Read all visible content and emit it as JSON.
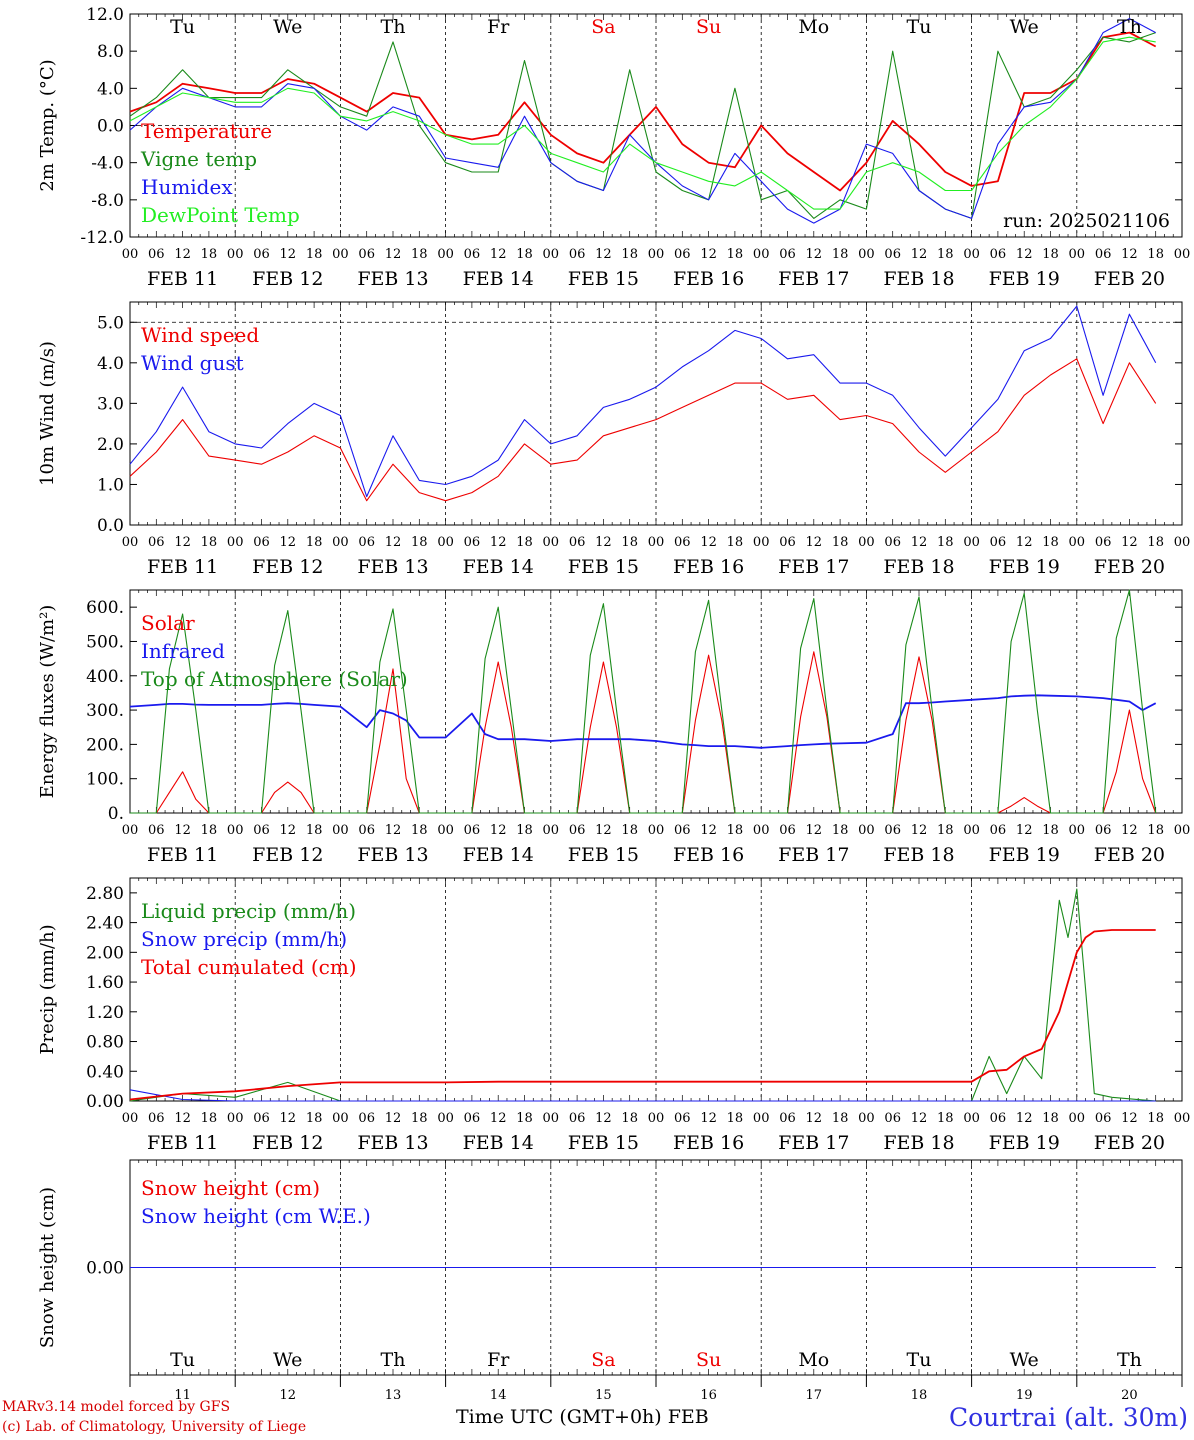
{
  "station": "Courtrai (alt. 30m)",
  "credits": [
    "MARv3.14 model forced by GFS",
    "(c) Lab. of Climatology, University of Liege"
  ],
  "x_title": "Time UTC (GMT+0h) FEB",
  "run_label": "run: 2025021106",
  "days": [
    "11",
    "12",
    "13",
    "14",
    "15",
    "16",
    "17",
    "18",
    "19",
    "20"
  ],
  "day_labels": [
    "FEB 11",
    "FEB 12",
    "FEB 13",
    "FEB 14",
    "FEB 15",
    "FEB 16",
    "FEB 17",
    "FEB 18",
    "FEB 19",
    "FEB 20"
  ],
  "weekdays": [
    "Tu",
    "We",
    "Th",
    "Fr",
    "Sa",
    "Su",
    "Mo",
    "Tu",
    "We",
    "Th"
  ],
  "weekday_colors": [
    "#000000",
    "#000000",
    "#000000",
    "#000000",
    "#ee0000",
    "#ee0000",
    "#000000",
    "#000000",
    "#000000",
    "#000000"
  ],
  "hour_ticks": [
    "00",
    "06",
    "12",
    "18"
  ],
  "colors": {
    "red": "#ee0000",
    "green": "#1a8a1a",
    "blue": "#1a1aee",
    "lightgreen": "#22ee22"
  },
  "chart_data": [
    {
      "type": "line",
      "ylabel": "2m Temp. (°C)",
      "ylim": [
        -12,
        12
      ],
      "yticks": [
        "12.0",
        "8.0",
        "4.0",
        "0.0",
        "-4.0",
        "-8.0",
        "-12.0"
      ],
      "hours": [
        0,
        6,
        12,
        18,
        24,
        30,
        36,
        42,
        48,
        54,
        60,
        66,
        72,
        78,
        84,
        90,
        96,
        102,
        108,
        114,
        120,
        126,
        132,
        138,
        144,
        150,
        156,
        162,
        168,
        174,
        180,
        186,
        192,
        198,
        204,
        210,
        216,
        222,
        228,
        234
      ],
      "series": [
        {
          "name": "Temperature",
          "color": "#ee0000",
          "values": [
            1.5,
            2.5,
            4.5,
            4,
            3.5,
            3.5,
            5,
            4.5,
            3,
            1.5,
            3.5,
            3,
            -1,
            -1.5,
            -1,
            2.5,
            -1,
            -3,
            -4,
            -1,
            2,
            -2,
            -4,
            -4.5,
            0,
            -3,
            -5,
            -7,
            -4,
            0.5,
            -2,
            -5,
            -6.5,
            -6,
            3.5,
            3.5,
            5,
            9.5,
            10,
            8.5
          ]
        },
        {
          "name": "Vigne temp",
          "color": "#1a8a1a",
          "values": [
            1,
            3,
            6,
            3,
            3,
            3,
            6,
            4,
            2,
            1,
            9,
            0,
            -4,
            -5,
            -5,
            7,
            -4,
            -6,
            -7,
            6,
            -5,
            -7,
            -8,
            4,
            -8,
            -7,
            -10,
            -8,
            -9,
            8,
            -7,
            -9,
            -10,
            8,
            2,
            3,
            6,
            9.5,
            9,
            10
          ]
        },
        {
          "name": "Humidex",
          "color": "#1a1aee",
          "values": [
            -0.5,
            2,
            4,
            3,
            2,
            2,
            4.5,
            4,
            1,
            -0.5,
            2,
            1,
            -3.5,
            -4,
            -4.5,
            1,
            -4,
            -6,
            -7,
            -1,
            -4,
            -6.5,
            -8,
            -3,
            -6,
            -9,
            -10.5,
            -9,
            -2,
            -3,
            -7,
            -9,
            -10,
            -2,
            2,
            2.5,
            5,
            10,
            11.5,
            10
          ]
        },
        {
          "name": "DewPoint Temp",
          "color": "#22ee22",
          "values": [
            0.5,
            2,
            3.5,
            3,
            2.5,
            2.5,
            4,
            3.5,
            1,
            0.5,
            1.5,
            0.5,
            -1,
            -2,
            -2,
            0,
            -3,
            -4,
            -5,
            -2,
            -4,
            -5,
            -6,
            -6.5,
            -5,
            -7,
            -9,
            -9,
            -5,
            -4,
            -5,
            -7,
            -7,
            -3,
            0,
            2,
            5,
            9,
            9.5,
            9
          ]
        }
      ]
    },
    {
      "type": "line",
      "ylabel": "10m Wind (m/s)",
      "ylim": [
        0,
        5.5
      ],
      "yticks": [
        "5.0",
        "4.0",
        "3.0",
        "2.0",
        "1.0",
        "0.0"
      ],
      "hours": [
        0,
        6,
        12,
        18,
        24,
        30,
        36,
        42,
        48,
        54,
        60,
        66,
        72,
        78,
        84,
        90,
        96,
        102,
        108,
        114,
        120,
        126,
        132,
        138,
        144,
        150,
        156,
        162,
        168,
        174,
        180,
        186,
        192,
        198,
        204,
        210,
        216,
        222,
        228,
        234
      ],
      "series": [
        {
          "name": "Wind speed",
          "color": "#ee0000",
          "values": [
            1.2,
            1.8,
            2.6,
            1.7,
            1.6,
            1.5,
            1.8,
            2.2,
            1.9,
            0.6,
            1.5,
            0.8,
            0.6,
            0.8,
            1.2,
            2.0,
            1.5,
            1.6,
            2.2,
            2.4,
            2.6,
            2.9,
            3.2,
            3.5,
            3.5,
            3.1,
            3.2,
            2.6,
            2.7,
            2.5,
            1.8,
            1.3,
            1.8,
            2.3,
            3.2,
            3.7,
            4.1,
            2.5,
            4.0,
            3.0
          ]
        },
        {
          "name": "Wind gust",
          "color": "#1a1aee",
          "values": [
            1.5,
            2.3,
            3.4,
            2.3,
            2.0,
            1.9,
            2.5,
            3.0,
            2.7,
            0.7,
            2.2,
            1.1,
            1.0,
            1.2,
            1.6,
            2.6,
            2.0,
            2.2,
            2.9,
            3.1,
            3.4,
            3.9,
            4.3,
            4.8,
            4.6,
            4.1,
            4.2,
            3.5,
            3.5,
            3.2,
            2.4,
            1.7,
            2.4,
            3.1,
            4.3,
            4.6,
            5.4,
            3.2,
            5.2,
            4.0
          ]
        }
      ]
    },
    {
      "type": "line",
      "ylabel": "Energy fluxes (W/m²)",
      "ylim": [
        0,
        650
      ],
      "yticks": [
        "600.",
        "500.",
        "400.",
        "300.",
        "200.",
        "100.",
        "0."
      ],
      "hours": [
        0,
        6,
        9,
        12,
        15,
        18,
        24,
        30,
        33,
        36,
        39,
        42,
        48,
        54,
        57,
        60,
        63,
        66,
        72,
        78,
        81,
        84,
        87,
        90,
        96,
        102,
        105,
        108,
        111,
        114,
        120,
        126,
        129,
        132,
        135,
        138,
        144,
        150,
        153,
        156,
        159,
        162,
        168,
        174,
        177,
        180,
        183,
        186,
        192,
        198,
        201,
        204,
        207,
        210,
        216,
        222,
        225,
        228,
        231,
        234
      ],
      "series": [
        {
          "name": "Solar",
          "color": "#ee0000",
          "values": [
            0,
            0,
            60,
            120,
            40,
            0,
            0,
            0,
            60,
            90,
            60,
            0,
            0,
            0,
            200,
            420,
            100,
            0,
            0,
            0,
            250,
            440,
            250,
            0,
            0,
            0,
            250,
            440,
            250,
            0,
            0,
            0,
            270,
            460,
            270,
            0,
            0,
            0,
            280,
            470,
            280,
            0,
            0,
            0,
            270,
            455,
            270,
            0,
            0,
            0,
            20,
            45,
            20,
            0,
            0,
            0,
            120,
            300,
            100,
            0
          ]
        },
        {
          "name": "Infrared",
          "color": "#1a1aee",
          "values": [
            310,
            315,
            318,
            318,
            316,
            315,
            315,
            315,
            318,
            320,
            318,
            315,
            310,
            250,
            300,
            290,
            270,
            220,
            220,
            290,
            230,
            215,
            215,
            215,
            210,
            215,
            215,
            215,
            215,
            215,
            210,
            200,
            198,
            195,
            195,
            195,
            190,
            195,
            198,
            200,
            202,
            203,
            205,
            230,
            320,
            320,
            322,
            325,
            330,
            335,
            340,
            342,
            343,
            342,
            340,
            335,
            330,
            325,
            300,
            320
          ]
        },
        {
          "name": "Top of Atmosphere (Solar)",
          "color": "#1a8a1a",
          "values": [
            0,
            0,
            420,
            580,
            300,
            0,
            0,
            0,
            430,
            590,
            300,
            0,
            0,
            0,
            440,
            595,
            300,
            0,
            0,
            0,
            450,
            600,
            300,
            0,
            0,
            0,
            460,
            610,
            300,
            0,
            0,
            0,
            470,
            620,
            300,
            0,
            0,
            0,
            480,
            625,
            300,
            0,
            0,
            0,
            490,
            630,
            300,
            0,
            0,
            0,
            500,
            640,
            300,
            0,
            0,
            0,
            510,
            650,
            300,
            0
          ]
        }
      ]
    },
    {
      "type": "line",
      "ylabel": "Precip (mm/h)",
      "ylim": [
        0,
        3.0
      ],
      "yticks": [
        "2.80",
        "2.40",
        "2.00",
        "1.60",
        "1.20",
        "0.80",
        "0.40",
        "0.00"
      ],
      "hours": [
        0,
        12,
        24,
        36,
        48,
        60,
        72,
        84,
        96,
        108,
        120,
        132,
        144,
        156,
        168,
        180,
        186,
        192,
        196,
        200,
        204,
        208,
        212,
        214,
        216,
        218,
        220,
        224,
        228,
        234
      ],
      "series": [
        {
          "name": "Liquid precip (mm/h)",
          "color": "#1a8a1a",
          "values": [
            0,
            0.1,
            0.05,
            0.25,
            0,
            0,
            0,
            0,
            0,
            0,
            0,
            0,
            0,
            0,
            0,
            0,
            0,
            0,
            0.6,
            0.1,
            0.6,
            0.3,
            2.7,
            2.2,
            2.85,
            1.5,
            0.1,
            0.05,
            0.03,
            0
          ]
        },
        {
          "name": "Snow precip (mm/h)",
          "color": "#1a1aee",
          "values": [
            0.15,
            0.02,
            0,
            0,
            0,
            0,
            0,
            0,
            0,
            0,
            0,
            0,
            0,
            0,
            0,
            0,
            0,
            0,
            0,
            0,
            0,
            0,
            0,
            0,
            0,
            0,
            0,
            0,
            0,
            0
          ]
        },
        {
          "name": "Total cumulated (cm)",
          "color": "#ee0000",
          "values": [
            0.02,
            0.1,
            0.13,
            0.2,
            0.25,
            0.25,
            0.25,
            0.26,
            0.26,
            0.26,
            0.26,
            0.26,
            0.26,
            0.26,
            0.26,
            0.26,
            0.26,
            0.26,
            0.4,
            0.42,
            0.6,
            0.7,
            1.2,
            1.6,
            2.0,
            2.2,
            2.28,
            2.3,
            2.3,
            2.3
          ]
        }
      ]
    },
    {
      "type": "line",
      "ylabel": "Snow height (cm)",
      "ylim": [
        -1,
        1
      ],
      "yticks": [
        "0.00"
      ],
      "hours": [
        0,
        234
      ],
      "series": [
        {
          "name": "Snow height (cm)",
          "color": "#ee0000",
          "values": [
            0,
            0
          ]
        },
        {
          "name": "Snow height (cm W.E.)",
          "color": "#1a1aee",
          "values": [
            0,
            0
          ]
        }
      ]
    }
  ]
}
